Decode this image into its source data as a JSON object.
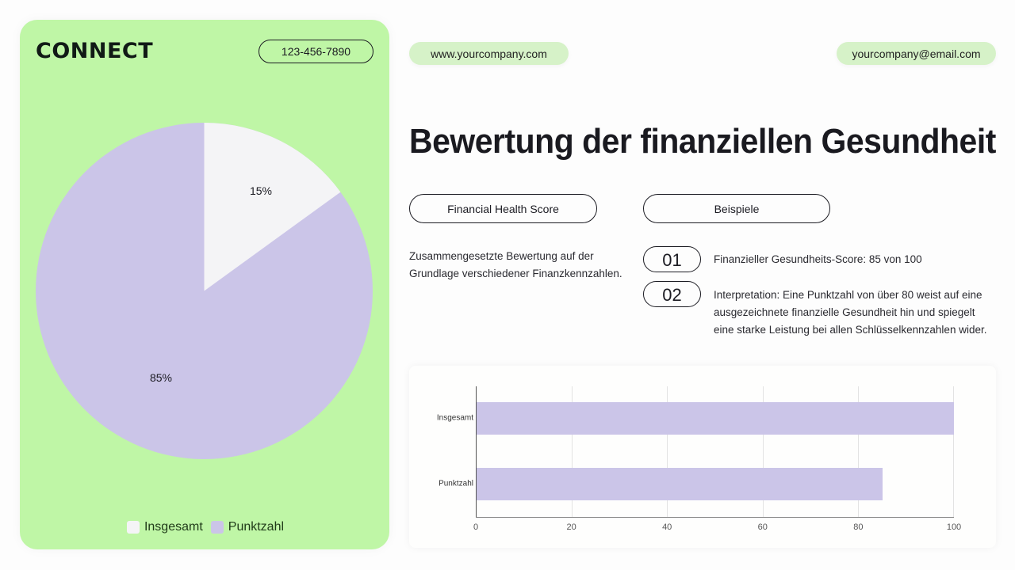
{
  "brand": {
    "logo_text": "CONNECT",
    "phone": "123-456-7890"
  },
  "contact": {
    "website": "www.yourcompany.com",
    "email": "yourcompany@email.com"
  },
  "title": "Bewertung der finanziellen Gesundheit",
  "sections": {
    "left_pill": "Financial Health Score",
    "right_pill": "Beispiele",
    "description": "Zusammengesetzte Bewertung auf der Grundlage verschiedener Finanzkennzahlen.",
    "examples": [
      {
        "number": "01",
        "text": "Finanzieller Gesundheits-Score: 85 von 100"
      },
      {
        "number": "02",
        "text": "Interpretation: Eine Punktzahl von über 80 weist auf eine ausgezeichnete finanzielle Gesundheit hin und spiegelt eine starke Leistung bei allen Schlüsselkennzahlen wider."
      }
    ]
  },
  "colors": {
    "card_green": "#bff6a6",
    "pill_green": "#d6f2c8",
    "series_insgesamt": "#f4f4f6",
    "series_punktzahl": "#cbc5e8",
    "text_dark": "#1b1b22"
  },
  "chart_data": [
    {
      "type": "pie",
      "title": "",
      "categories": [
        "Insgesamt",
        "Punktzahl"
      ],
      "values": [
        15,
        85
      ],
      "labels": [
        "15%",
        "85%"
      ],
      "colors": [
        "#f4f4f6",
        "#cbc5e8"
      ],
      "legend": {
        "position": "bottom",
        "entries": [
          "Insgesamt",
          "Punktzahl"
        ]
      }
    },
    {
      "type": "bar",
      "orientation": "horizontal",
      "title": "",
      "categories": [
        "Insgesamt",
        "Punktzahl"
      ],
      "values": [
        100,
        85
      ],
      "xlabel": "",
      "ylabel": "",
      "xlim": [
        0,
        100
      ],
      "xticks": [
        "0",
        "20",
        "40",
        "60",
        "80",
        "100"
      ],
      "grid": true,
      "color": "#cbc5e8"
    }
  ]
}
